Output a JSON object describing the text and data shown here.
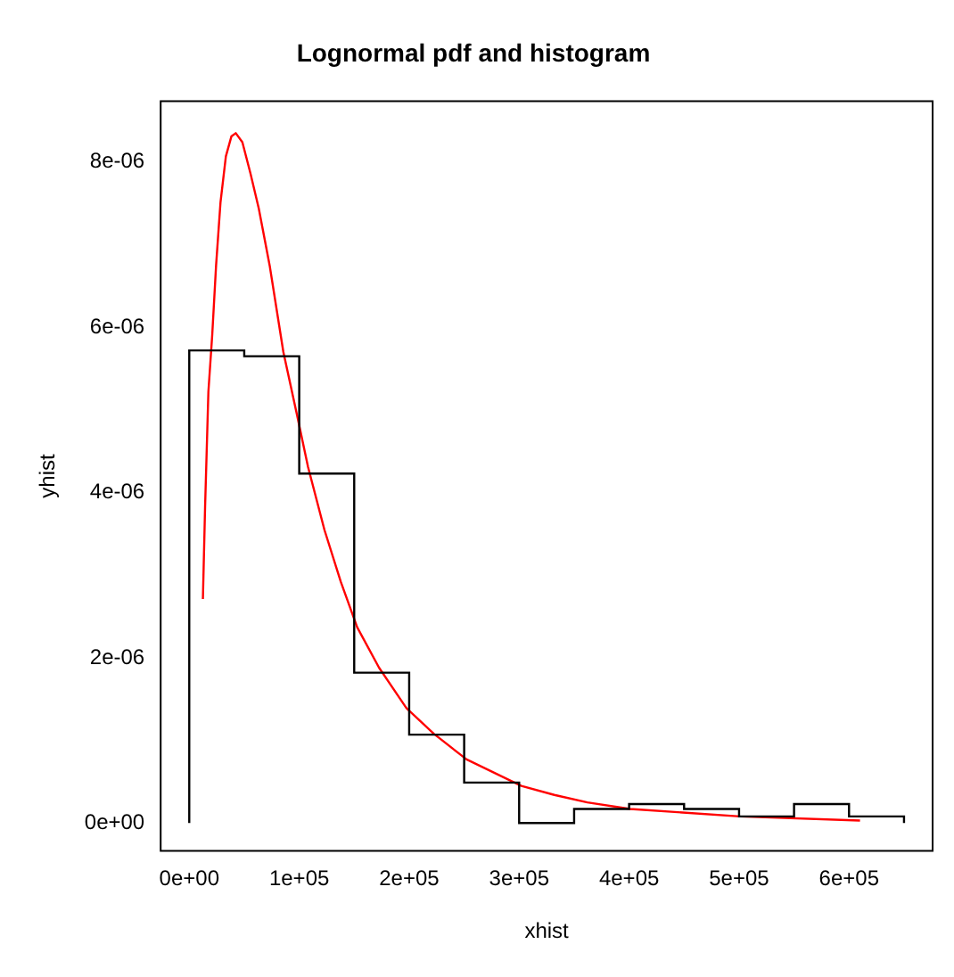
{
  "chart_data": {
    "type": "histogram",
    "title": "Lognormal pdf and histogram",
    "xlabel": "xhist",
    "ylabel": "yhist",
    "bins": [
      0,
      50000,
      100000,
      150000,
      200000,
      250000,
      300000,
      350000,
      400000,
      450000,
      500000,
      550000,
      600000,
      650000
    ],
    "series": [
      {
        "type": "histogram",
        "color": "#000000",
        "values": [
          5.72e-06,
          5.65e-06,
          4.23e-06,
          1.82e-06,
          1.07e-06,
          4.9e-07,
          0,
          1.7e-07,
          2.3e-07,
          1.7e-07,
          8e-08,
          2.3e-07,
          8e-08
        ]
      },
      {
        "type": "line",
        "color": "#ff0000",
        "x": [
          12400,
          14400,
          17400,
          20900,
          24400,
          28400,
          33300,
          38300,
          42300,
          48300,
          55700,
          63200,
          73100,
          85600,
          98000,
          108000,
          122900,
          137800,
          152700,
          172600,
          197500,
          222400,
          252200,
          302000,
          332000,
          362000,
          401000,
          501000,
          610000
        ],
        "values": [
          2.71e-06,
          3.83e-06,
          5.22e-06,
          5.91e-06,
          6.75e-06,
          7.51e-06,
          8.07e-06,
          8.31e-06,
          8.35e-06,
          8.24e-06,
          7.86e-06,
          7.44e-06,
          6.75e-06,
          5.7e-06,
          4.94e-06,
          4.31e-06,
          3.55e-06,
          2.92e-06,
          2.37e-06,
          1.88e-06,
          1.39e-06,
          1.08e-06,
          7.7e-07,
          4.5e-07,
          3.4e-07,
          2.5e-07,
          1.7e-07,
          8e-08,
          3e-08
        ]
      }
    ],
    "xlim": [
      -26000,
      676000
    ],
    "xticks": [
      {
        "value": 0,
        "label": "0e+00"
      },
      {
        "value": 100000,
        "label": "1e+05"
      },
      {
        "value": 200000,
        "label": "2e+05"
      },
      {
        "value": 300000,
        "label": "3e+05"
      },
      {
        "value": 400000,
        "label": "4e+05"
      },
      {
        "value": 500000,
        "label": "5e+05"
      },
      {
        "value": 600000,
        "label": "6e+05"
      }
    ],
    "ylim": [
      -3.36e-07,
      8.736e-06
    ],
    "yticks": [
      {
        "value": 0,
        "label": "0e+00"
      },
      {
        "value": 2e-06,
        "label": "2e-06"
      },
      {
        "value": 4e-06,
        "label": "4e-06"
      },
      {
        "value": 6e-06,
        "label": "6e-06"
      },
      {
        "value": 8e-06,
        "label": "8e-06"
      }
    ],
    "grid": false,
    "legend": false,
    "marker": "none",
    "line_style": "solid"
  }
}
